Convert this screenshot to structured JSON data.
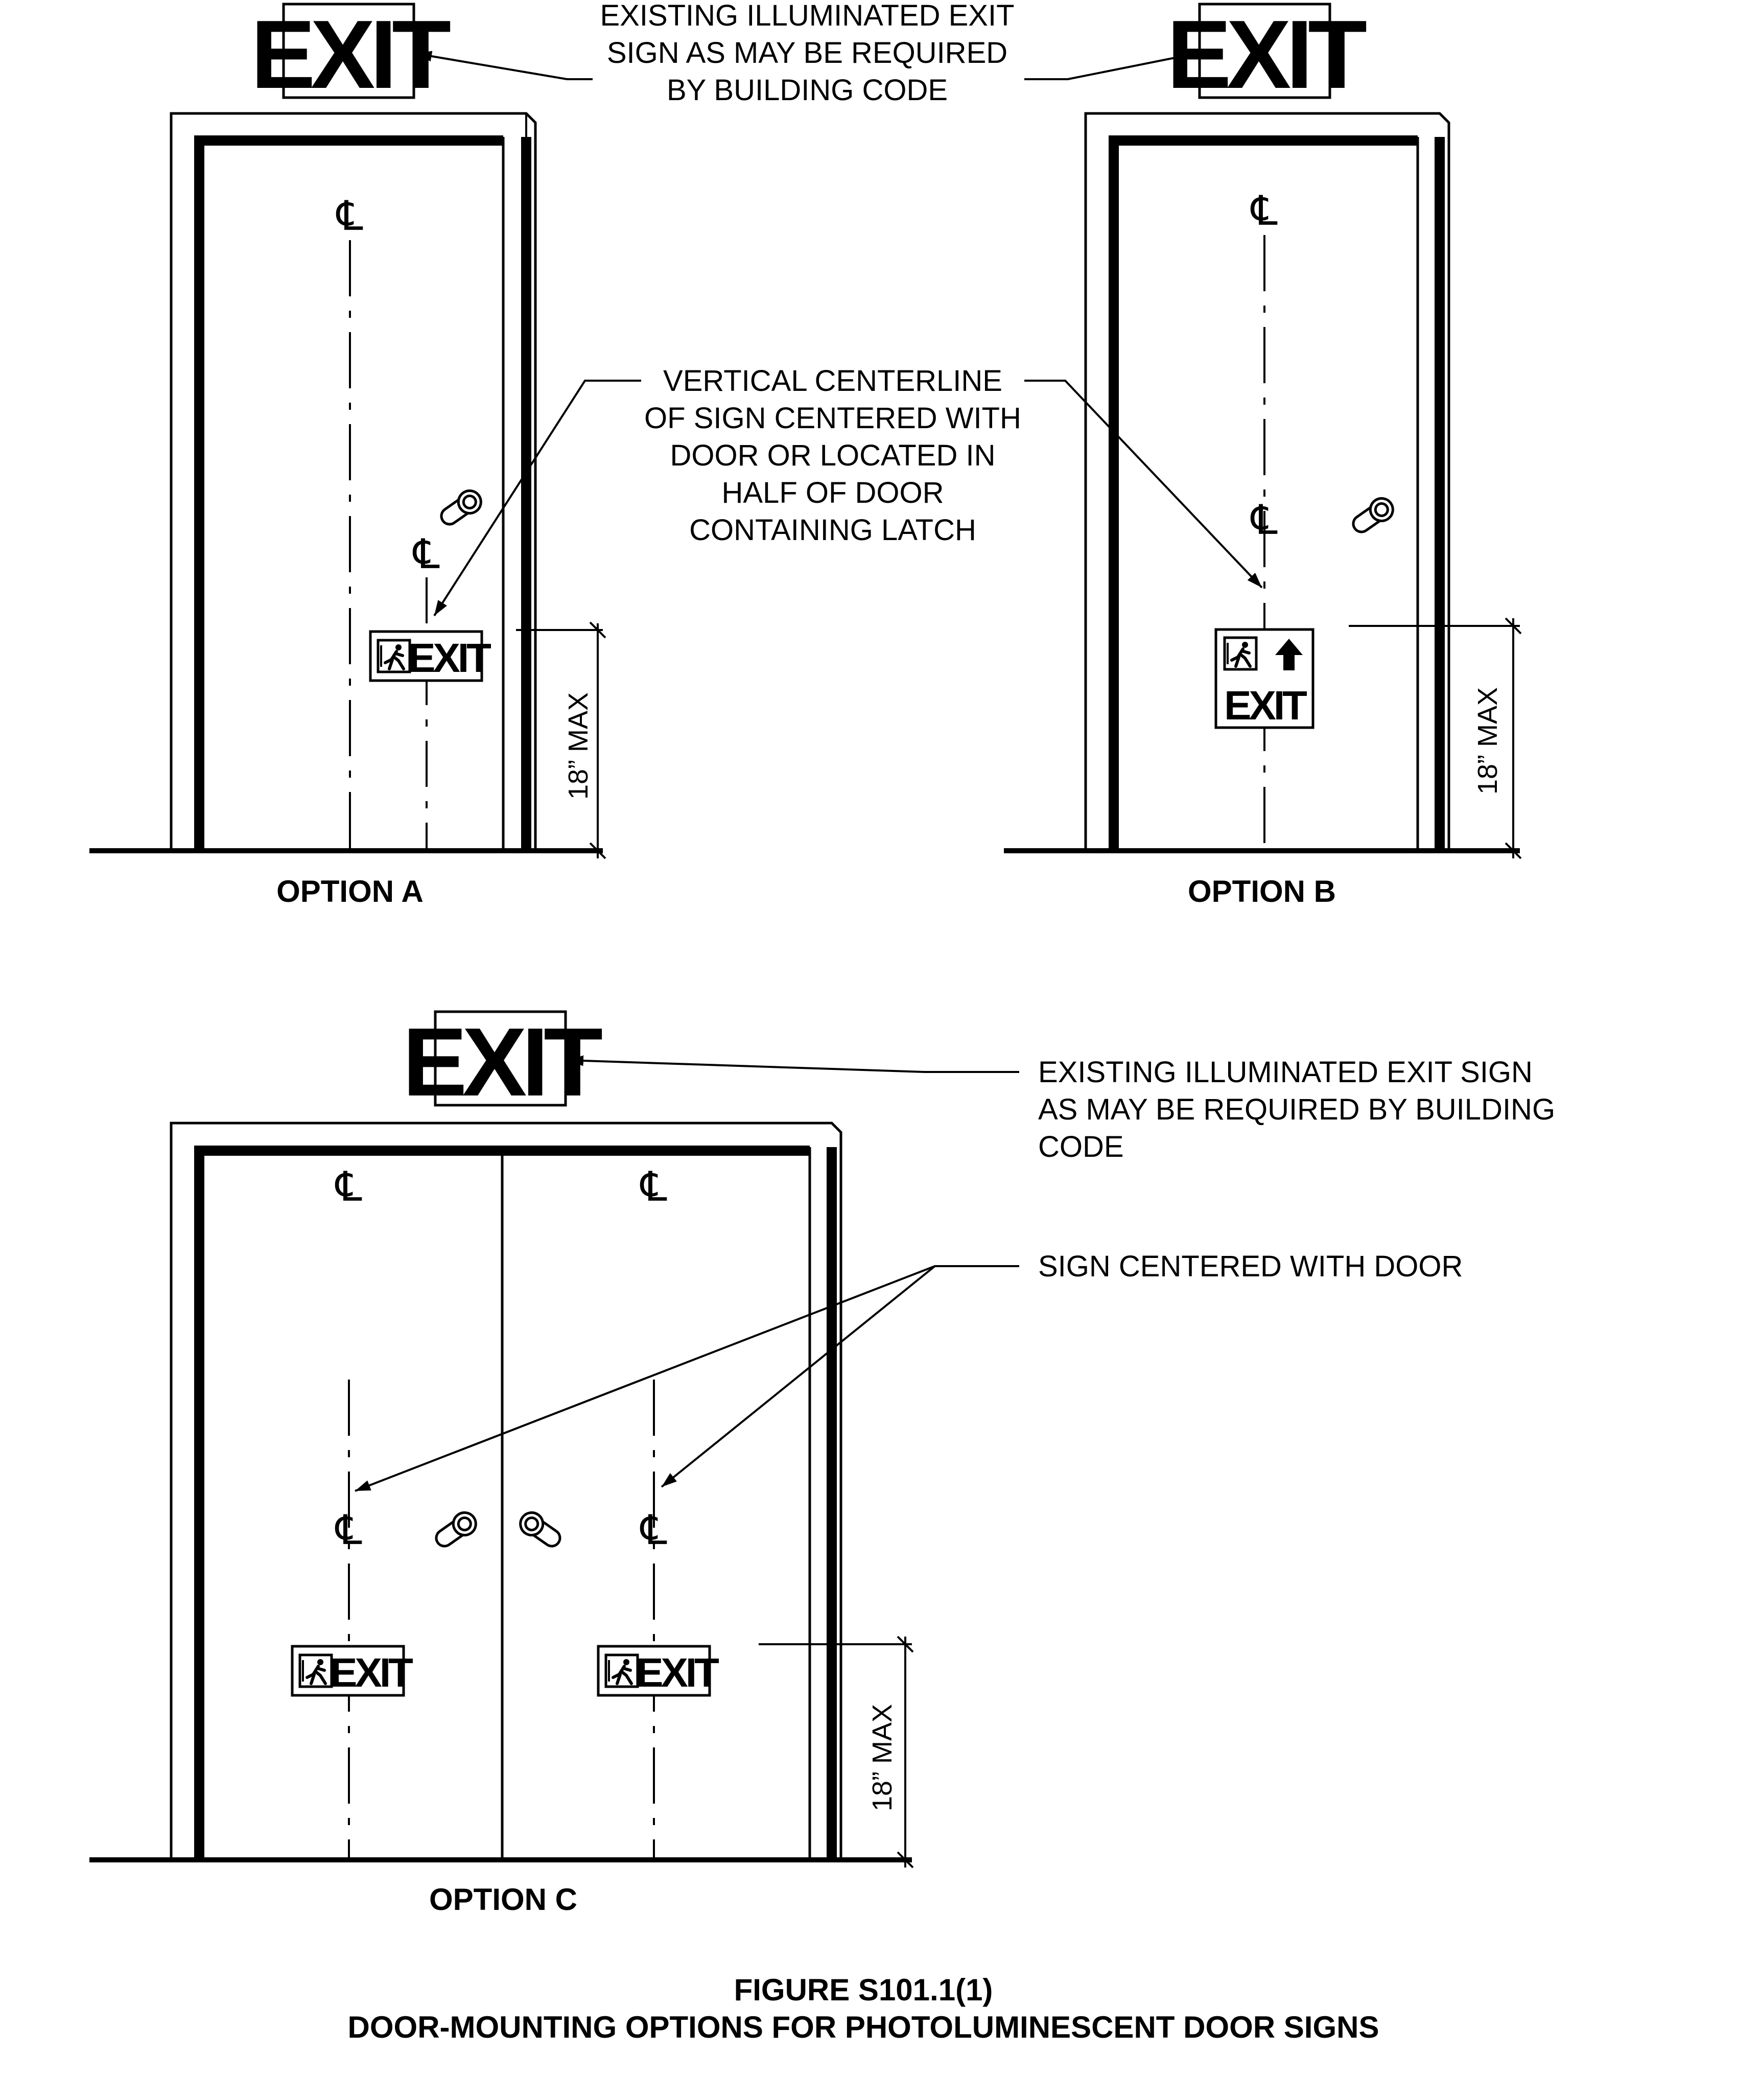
{
  "labels": {
    "top_note": [
      "EXISTING ILLUMINATED EXIT",
      "SIGN AS MAY BE REQUIRED",
      "BY BUILDING CODE"
    ],
    "mid_note": [
      "VERTICAL CENTERLINE",
      "OF SIGN CENTERED WITH",
      "DOOR OR LOCATED IN",
      "HALF OF DOOR",
      "CONTAINING LATCH"
    ],
    "c_note": [
      "EXISTING ILLUMINATED EXIT SIGN",
      "AS MAY BE REQUIRED BY BUILDING",
      "CODE"
    ],
    "c_sign_note": "SIGN CENTERED WITH DOOR",
    "dim": "18” MAX",
    "option_a": "OPTION A",
    "option_b": "OPTION B",
    "option_c": "OPTION C",
    "figure_number": "FIGURE S101.1(1)",
    "figure_title": "DOOR-MOUNTING OPTIONS FOR PHOTOLUMINESCENT DOOR SIGNS"
  },
  "sign_text": "EXIT",
  "centerline_symbol": "℄"
}
